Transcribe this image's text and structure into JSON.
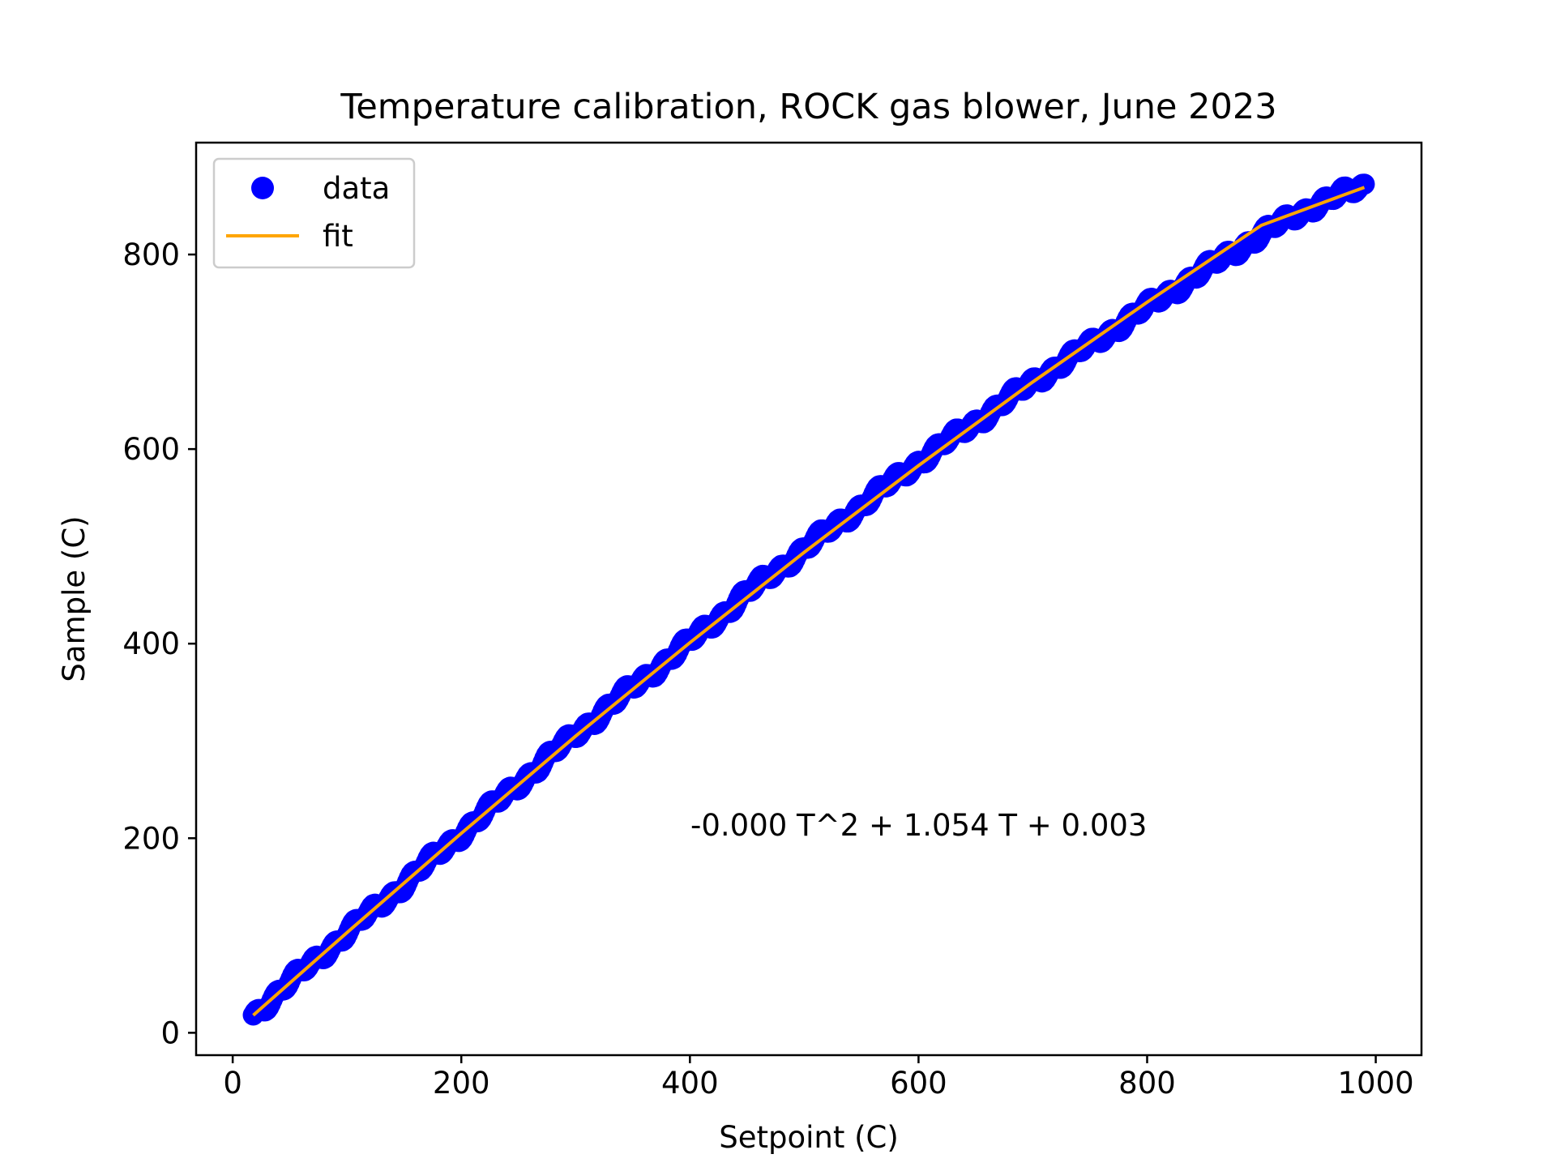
{
  "chart_data": {
    "type": "scatter",
    "title": "Temperature calibration, ROCK gas blower, June 2023",
    "xlabel": "Setpoint (C)",
    "ylabel": "Sample (C)",
    "xlim": [
      -32,
      1040
    ],
    "ylim": [
      -23,
      915
    ],
    "xticks": [
      0,
      200,
      400,
      600,
      800,
      1000
    ],
    "yticks": [
      0,
      200,
      400,
      600,
      800
    ],
    "grid": false,
    "legend": {
      "placement": "upper-left",
      "entries": [
        "data",
        "fit"
      ]
    },
    "annotation": "-0.000 T^2 + 1.054 T + 0.003",
    "colors": {
      "data": "#0000ff",
      "fit": "#ffa500",
      "axes": "#000000"
    },
    "series": [
      {
        "name": "data",
        "kind": "scatter",
        "x": [
          18,
          50,
          100,
          150,
          200,
          250,
          300,
          350,
          400,
          450,
          500,
          550,
          600,
          650,
          700,
          750,
          800,
          850,
          900,
          950,
          990
        ],
        "y": [
          18,
          52,
          103,
          153,
          205,
          256,
          307,
          355,
          402,
          452,
          497,
          542,
          587,
          628,
          669,
          707,
          746,
          784,
          821,
          853,
          870
        ]
      },
      {
        "name": "fit",
        "kind": "line",
        "x": [
          18,
          100,
          200,
          300,
          400,
          500,
          600,
          700,
          800,
          900,
          990
        ],
        "y": [
          18,
          103,
          205,
          305,
          401,
          494,
          583,
          669,
          751,
          830,
          869
        ]
      }
    ]
  }
}
